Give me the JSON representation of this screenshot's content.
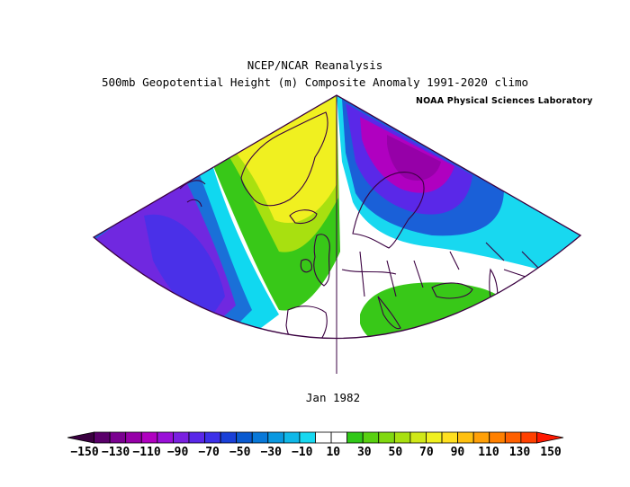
{
  "title_line1": "NCEP/NCAR Reanalysis",
  "title_line2": "500mb Geopotential Height (m) Composite Anomaly 1991-2020 climo",
  "credit": "NOAA Physical Sciences Laboratory",
  "period_label": "Jan 1982",
  "colorbar": {
    "colors": [
      "#3a0040",
      "#5a006a",
      "#7a0090",
      "#9600a8",
      "#b000c0",
      "#9a10d8",
      "#7a20e0",
      "#5a28e8",
      "#3c30e8",
      "#1a40d8",
      "#0a5ad0",
      "#0878d8",
      "#0a98e0",
      "#10b8e8",
      "#18d8f0",
      "#ffffff",
      "#ffffff",
      "#30c818",
      "#58d010",
      "#80d810",
      "#a8e010",
      "#d0e818",
      "#f0f020",
      "#ffe020",
      "#ffc010",
      "#ffa008",
      "#ff8000",
      "#ff6000",
      "#ff4000",
      "#ff1800"
    ],
    "tick_labels": [
      "-150",
      "-130",
      "-110",
      "-90",
      "-70",
      "-50",
      "-30",
      "-10",
      "10",
      "30",
      "50",
      "70",
      "90",
      "110",
      "130",
      "150"
    ]
  }
}
